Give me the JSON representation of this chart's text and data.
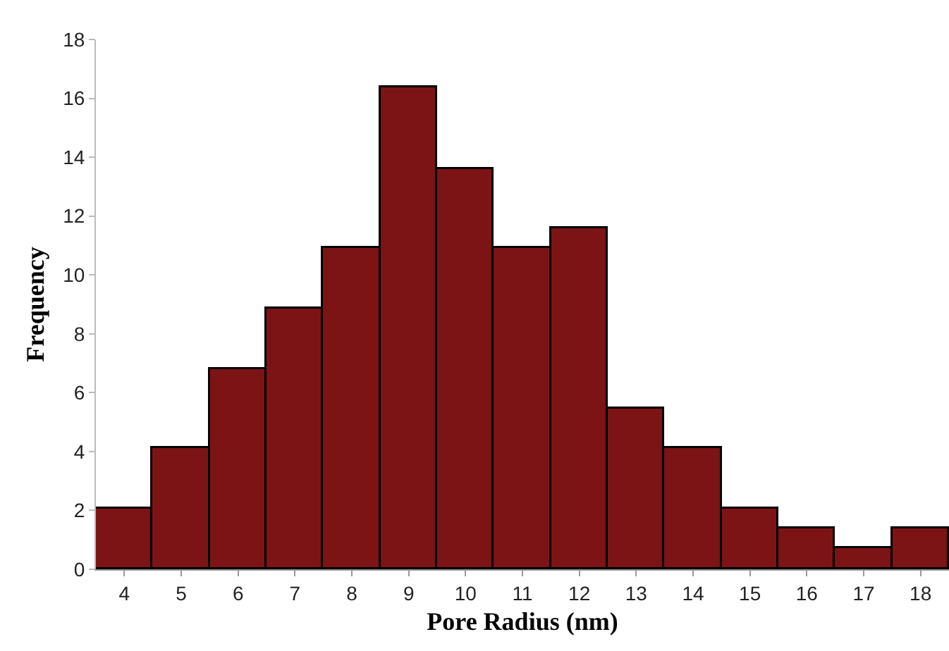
{
  "chart_data": {
    "type": "bar",
    "xlabel": "Pore Radius (nm)",
    "ylabel": "Frequency",
    "categories": [
      "4",
      "5",
      "6",
      "7",
      "8",
      "9",
      "10",
      "11",
      "12",
      "13",
      "14",
      "15",
      "16",
      "17",
      "18"
    ],
    "values": [
      2.05,
      4.1,
      6.8,
      8.85,
      10.9,
      16.35,
      13.6,
      10.9,
      11.6,
      5.45,
      4.1,
      2.05,
      1.4,
      0.7,
      1.4
    ],
    "color": "#7c1416",
    "ylim": [
      0,
      18
    ],
    "yticks": [
      0,
      2,
      4,
      6,
      8,
      10,
      12,
      14,
      16,
      18
    ],
    "grid": false
  }
}
